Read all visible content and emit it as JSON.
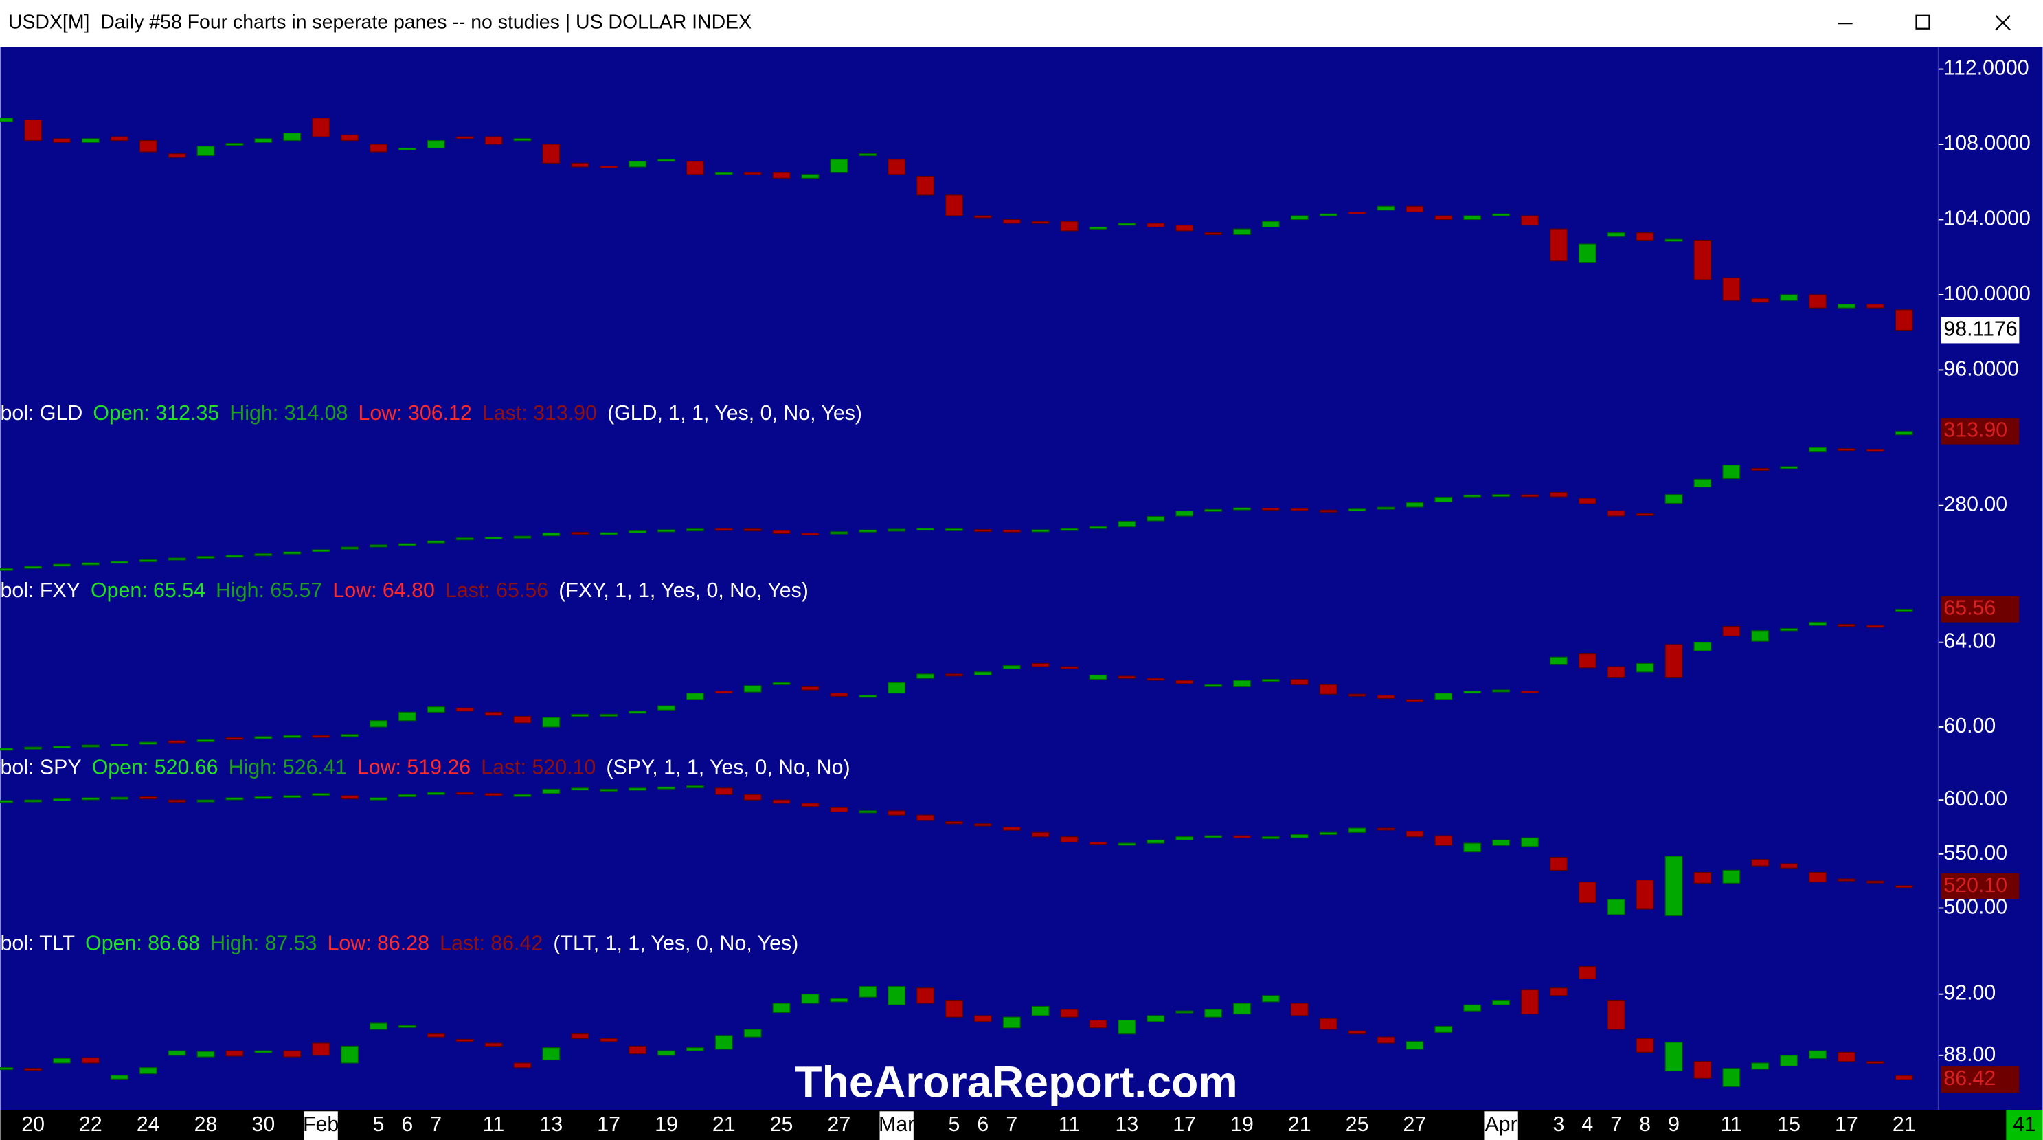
{
  "window": {
    "title": "USDX[M]  Daily #58 Four charts in seperate panes -- no studies | US DOLLAR INDEX"
  },
  "watermark": "TheAroraReport.com",
  "corner_label": "41",
  "chart_data": [
    {
      "type": "candlestick",
      "background": "#06068c",
      "up_color": "#00a800",
      "down_color": "#b00000",
      "categories": [
        null,
        "20",
        null,
        "22",
        null,
        "24",
        null,
        "28",
        null,
        "30",
        null,
        "Feb",
        null,
        "5",
        "6",
        "7",
        null,
        "11",
        null,
        "13",
        null,
        "17",
        null,
        "19",
        null,
        "21",
        null,
        "25",
        null,
        "27",
        null,
        "Mar",
        null,
        "5",
        "6",
        "7",
        null,
        "11",
        null,
        "13",
        null,
        "17",
        null,
        "19",
        null,
        "21",
        null,
        "25",
        null,
        "27",
        null,
        null,
        "Apr",
        null,
        "3",
        "4",
        "7",
        "8",
        "9",
        null,
        "11",
        null,
        "15",
        null,
        "17",
        null,
        "21"
      ],
      "open": [
        109.2,
        109.3,
        108.3,
        108.1,
        108.4,
        108.2,
        107.5,
        107.4,
        107.95,
        108.1,
        108.2,
        109.4,
        108.5,
        108.0,
        107.7,
        107.8,
        108.4,
        108.4,
        108.2,
        108.0,
        107.0,
        106.85,
        106.8,
        107.1,
        107.1,
        106.4,
        106.5,
        106.5,
        106.2,
        106.5,
        107.4,
        107.2,
        106.3,
        105.3,
        104.2,
        104.0,
        103.9,
        103.9,
        103.5,
        103.7,
        103.8,
        103.7,
        103.3,
        103.2,
        103.6,
        104.0,
        104.3,
        104.4,
        104.5,
        104.7,
        104.2,
        104.0,
        104.2,
        104.2,
        103.5,
        101.7,
        103.1,
        103.3,
        102.85,
        102.9,
        100.9,
        99.8,
        99.7,
        100.0,
        99.3,
        99.5,
        99.2
      ],
      "close": [
        109.4,
        108.2,
        108.1,
        108.3,
        108.2,
        107.6,
        107.3,
        107.9,
        108.05,
        108.3,
        108.6,
        108.4,
        108.2,
        107.6,
        107.8,
        108.2,
        108.3,
        108.0,
        108.3,
        107.0,
        106.8,
        106.75,
        107.1,
        107.2,
        106.4,
        106.5,
        106.4,
        106.2,
        106.4,
        107.2,
        107.5,
        106.4,
        105.3,
        104.2,
        104.1,
        103.8,
        103.8,
        103.4,
        103.6,
        103.8,
        103.6,
        103.4,
        103.2,
        103.5,
        103.9,
        104.2,
        104.3,
        104.3,
        104.7,
        104.4,
        104.0,
        104.2,
        104.3,
        103.7,
        101.8,
        102.7,
        103.3,
        102.9,
        102.95,
        100.8,
        99.7,
        99.6,
        100.0,
        99.3,
        99.5,
        99.3,
        98.1176
      ],
      "ylim": [
        94.89,
        113.18
      ],
      "yticks": [
        {
          "value": 112,
          "label": "112.0000"
        },
        {
          "value": 108,
          "label": "108.0000"
        },
        {
          "value": 104,
          "label": "104.0000"
        },
        {
          "value": 100,
          "label": "100.0000"
        },
        {
          "value": 96,
          "label": "96.0000"
        }
      ],
      "last_label": "98.1176"
    },
    {
      "type": "candlestick",
      "up_color": "#00a800",
      "down_color": "#b00000",
      "header": {
        "symbol": "bol: GLD",
        "open": "Open: 312.35",
        "high": "High: 314.08",
        "low": "Low: 306.12",
        "last": "Last: 313.90",
        "params": "(GLD, 1, 1, Yes, 0, No, Yes)"
      },
      "open": [
        250.5,
        251.5,
        252.5,
        253.3,
        253.8,
        254.5,
        255.3,
        256.0,
        256.8,
        257.3,
        258.0,
        259.0,
        260.2,
        261.2,
        262.0,
        263.0,
        264.5,
        265.0,
        265.5,
        266.2,
        267.8,
        267.0,
        267.5,
        268.3,
        268.8,
        269.5,
        269.3,
        268.6,
        267.4,
        267.0,
        268.3,
        268.6,
        269.3,
        269.0,
        269.0,
        268.8,
        268.2,
        268.6,
        269.6,
        270.3,
        273.0,
        275.2,
        277.6,
        278.3,
        278.8,
        278.6,
        277.9,
        278.0,
        278.6,
        279.3,
        281.6,
        284.2,
        284.9,
        284.9,
        286.0,
        283.3,
        277.6,
        276.3,
        281.0,
        288.5,
        292.3,
        297.0,
        297.0,
        304.5,
        306.0,
        305.6,
        312.35
      ],
      "close": [
        251.2,
        252.2,
        253.2,
        253.8,
        254.5,
        255.2,
        256.0,
        256.8,
        257.3,
        258.0,
        258.8,
        259.8,
        261.0,
        262.0,
        262.6,
        263.8,
        265.2,
        265.6,
        266.0,
        267.5,
        267.0,
        267.6,
        268.4,
        268.9,
        269.3,
        269.0,
        268.4,
        267.2,
        266.5,
        268.0,
        268.8,
        269.2,
        269.6,
        269.4,
        268.8,
        268.5,
        268.9,
        269.5,
        270.4,
        272.8,
        275.0,
        277.5,
        278.2,
        278.9,
        278.7,
        278.2,
        277.8,
        278.4,
        279.2,
        281.3,
        283.8,
        284.8,
        285.0,
        284.6,
        284.0,
        280.8,
        275.2,
        275.6,
        285.0,
        292.0,
        298.5,
        296.5,
        297.8,
        306.5,
        305.5,
        305.4,
        313.9
      ],
      "ylim": [
        248.45,
        329.4
      ],
      "yticks": [
        {
          "value": 280,
          "label": "280.00"
        }
      ],
      "last_label": "313.90"
    },
    {
      "type": "candlestick",
      "up_color": "#00a800",
      "down_color": "#b00000",
      "header": {
        "symbol": "bol: FXY",
        "open": "Open: 65.54",
        "high": "High: 65.57",
        "low": "Low: 64.80",
        "last": "Last: 65.56",
        "params": "(FXY, 1, 1, Yes, 0, No, Yes)"
      },
      "open": [
        58.9,
        59.0,
        59.05,
        59.1,
        59.15,
        59.2,
        59.35,
        59.3,
        59.5,
        59.45,
        59.5,
        59.6,
        59.55,
        60.0,
        60.3,
        60.7,
        60.9,
        60.7,
        60.5,
        60.0,
        60.5,
        60.6,
        60.65,
        60.8,
        61.3,
        61.7,
        61.65,
        62.0,
        61.9,
        61.6,
        61.4,
        61.6,
        62.3,
        62.5,
        62.45,
        62.75,
        63.0,
        62.85,
        62.25,
        62.4,
        62.3,
        62.2,
        62.0,
        61.9,
        62.2,
        62.25,
        62.0,
        61.55,
        61.5,
        61.3,
        61.3,
        61.6,
        61.7,
        61.7,
        62.95,
        63.45,
        62.85,
        62.6,
        63.9,
        63.6,
        64.75,
        64.05,
        64.55,
        64.8,
        64.85,
        64.8,
        65.54
      ],
      "close": [
        59.0,
        59.05,
        59.1,
        59.15,
        59.2,
        59.28,
        59.25,
        59.4,
        59.42,
        59.55,
        59.6,
        59.55,
        59.65,
        60.3,
        60.7,
        60.95,
        60.75,
        60.55,
        60.2,
        60.45,
        60.6,
        60.6,
        60.75,
        61.0,
        61.6,
        61.6,
        61.95,
        62.1,
        61.75,
        61.45,
        61.5,
        62.1,
        62.5,
        62.45,
        62.6,
        62.9,
        62.85,
        62.8,
        62.45,
        62.3,
        62.25,
        62.05,
        62.0,
        62.2,
        62.25,
        62.0,
        61.55,
        61.5,
        61.35,
        61.2,
        61.6,
        61.7,
        61.75,
        61.65,
        63.3,
        62.8,
        62.35,
        63.0,
        62.35,
        64.0,
        64.3,
        64.55,
        64.65,
        64.95,
        64.78,
        64.75,
        65.56
      ],
      "ylim": [
        58.83,
        67.2
      ],
      "yticks": [
        {
          "value": 64,
          "label": "64.00"
        },
        {
          "value": 60,
          "label": "60.00"
        }
      ],
      "last_label": "65.56"
    },
    {
      "type": "candlestick",
      "up_color": "#00a800",
      "down_color": "#b00000",
      "header": {
        "symbol": "bol: SPY",
        "open": "Open: 520.66",
        "high": "High: 526.41",
        "low": "Low: 519.26",
        "last": "Last: 520.10",
        "params": "(SPY, 1, 1, Yes, 0, No, No)"
      },
      "open": [
        599,
        598.5,
        600,
        601,
        602,
        603,
        600,
        599,
        601,
        602,
        603,
        605,
        604,
        600,
        603,
        605,
        607,
        606,
        604,
        606,
        610,
        610,
        609,
        611,
        612,
        611,
        605,
        600,
        597,
        593,
        589,
        590,
        586,
        580,
        578,
        575,
        570,
        566,
        561,
        559,
        560,
        563,
        566,
        567,
        566,
        565,
        568,
        570,
        574,
        571,
        567,
        552,
        558,
        557,
        547,
        524,
        494,
        526,
        493,
        533,
        523,
        545,
        541,
        533,
        527,
        525,
        520.66
      ],
      "close": [
        599.5,
        600,
        601,
        602,
        602.5,
        601,
        598,
        600,
        602,
        603,
        604,
        606,
        601,
        602,
        605,
        607,
        606,
        604,
        605,
        610,
        611,
        610,
        611,
        612,
        613,
        605,
        600,
        597,
        594,
        589,
        590,
        586,
        581,
        578,
        576,
        572,
        566,
        561,
        559,
        560,
        563,
        566,
        567,
        565,
        566,
        568,
        570,
        574,
        573,
        566,
        558,
        560,
        563,
        565,
        535,
        505,
        508,
        499,
        548,
        523,
        535,
        539,
        537,
        524,
        525,
        524,
        520.1
      ],
      "ylim": [
        481.9,
        644.6
      ],
      "yticks": [
        {
          "value": 600,
          "label": "600.00"
        },
        {
          "value": 550,
          "label": "550.00"
        },
        {
          "value": 500,
          "label": "500.00"
        }
      ],
      "last_label": "520.10"
    },
    {
      "type": "candlestick",
      "up_color": "#00a800",
      "down_color": "#b00000",
      "header": {
        "symbol": "bol: TLT",
        "open": "Open: 86.68",
        "high": "High: 87.53",
        "low": "Low: 86.28",
        "last": "Last: 86.42",
        "params": "(TLT, 1, 1, Yes, 0, No, Yes)"
      },
      "open": [
        87.1,
        87.15,
        87.5,
        87.85,
        86.45,
        86.8,
        88.0,
        87.9,
        88.3,
        88.2,
        88.3,
        88.8,
        87.5,
        89.7,
        89.9,
        89.4,
        89.05,
        88.8,
        87.5,
        87.7,
        89.4,
        89.1,
        88.6,
        88.0,
        88.3,
        88.4,
        89.2,
        90.8,
        91.4,
        91.5,
        91.8,
        91.3,
        92.4,
        91.6,
        90.6,
        89.8,
        90.6,
        91.0,
        90.3,
        89.4,
        90.2,
        90.8,
        90.5,
        90.7,
        91.5,
        91.4,
        90.4,
        89.6,
        89.2,
        88.4,
        89.5,
        90.9,
        91.3,
        92.3,
        92.4,
        93.8,
        91.6,
        89.1,
        86.98,
        87.6,
        85.96,
        87.1,
        87.3,
        87.8,
        88.2,
        87.6,
        86.68
      ],
      "close": [
        87.2,
        87.1,
        87.8,
        87.5,
        86.7,
        87.2,
        88.3,
        88.25,
        87.95,
        88.3,
        87.9,
        88.0,
        88.6,
        90.1,
        89.95,
        89.2,
        88.9,
        88.6,
        87.2,
        88.5,
        89.1,
        88.9,
        88.1,
        88.3,
        88.5,
        89.3,
        89.7,
        91.4,
        92.0,
        91.7,
        92.5,
        92.5,
        91.4,
        90.5,
        90.2,
        90.5,
        91.2,
        90.5,
        89.8,
        90.3,
        90.6,
        90.9,
        91.0,
        91.4,
        91.9,
        90.6,
        89.7,
        89.4,
        88.8,
        88.9,
        89.9,
        91.3,
        91.6,
        90.7,
        91.9,
        93.0,
        89.7,
        88.2,
        88.85,
        86.5,
        87.15,
        87.5,
        88.0,
        88.3,
        87.6,
        87.5,
        86.42
      ],
      "ylim": [
        84.6,
        96.34
      ],
      "yticks": [
        {
          "value": 92,
          "label": "92.00"
        },
        {
          "value": 88,
          "label": "88.00"
        }
      ],
      "last_label": "86.42"
    }
  ]
}
